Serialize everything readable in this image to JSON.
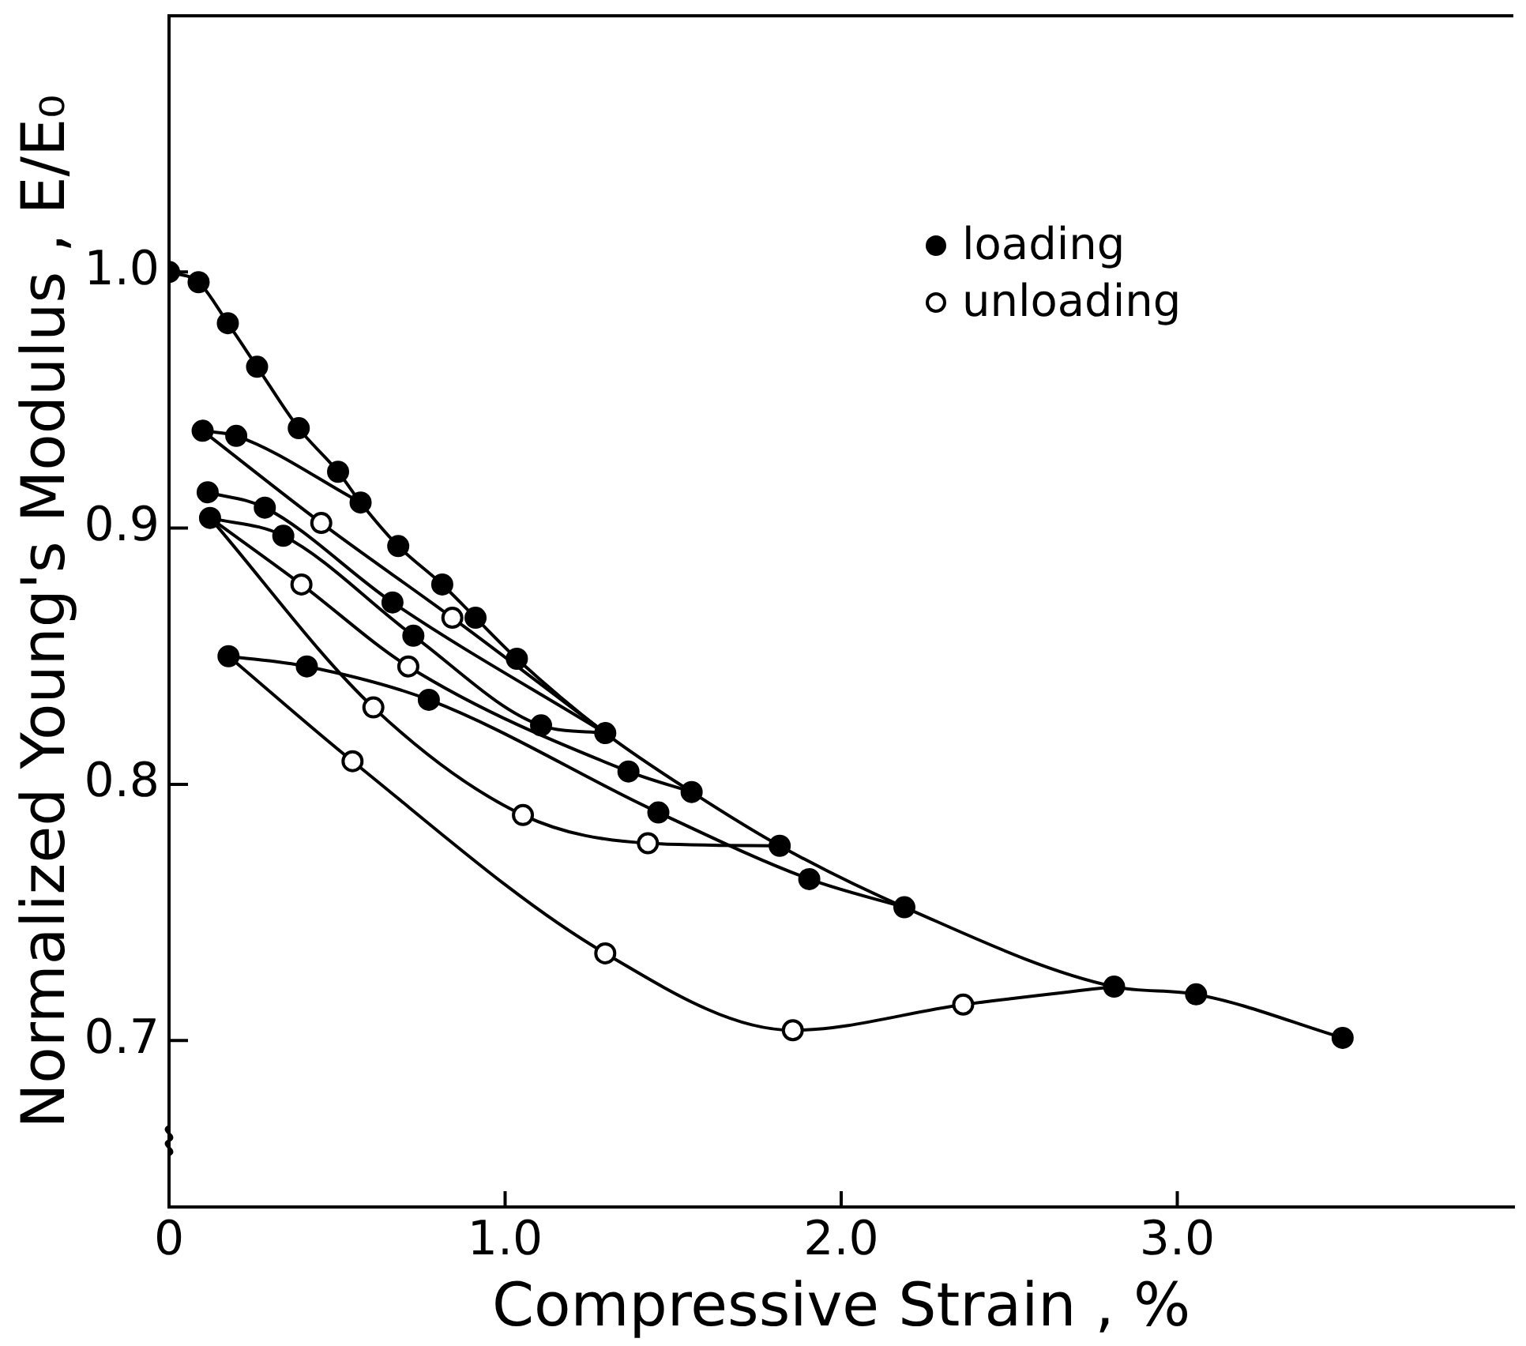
{
  "chart_data": {
    "type": "line",
    "xlabel": "Compressive Strain , %",
    "ylabel": "Normalized Young's Modulus , E/E₀",
    "xlim": [
      0,
      4.0
    ],
    "xticks": [
      0,
      {
        "value": 1,
        "label": "1.0"
      },
      {
        "value": 2,
        "label": "2.0"
      },
      {
        "value": 3,
        "label": "3.0"
      }
    ],
    "ylim": [
      0.635,
      1.1
    ],
    "yticks": [
      0.7,
      0.8,
      0.9,
      {
        "value": 1,
        "label": "1.0"
      }
    ],
    "legend": "top right",
    "series": [
      {
        "color": "#000000",
        "marker": "none",
        "x": [
          0,
          0.088,
          0.175,
          0.262,
          0.386,
          0.503,
          0.57,
          0.682,
          0.813,
          0.912,
          1.035,
          1.298,
          1.555,
          1.817,
          2.188,
          2.812,
          3.056,
          3.492
        ],
        "values": [
          1.0,
          0.996,
          0.98,
          0.963,
          0.939,
          0.922,
          0.91,
          0.893,
          0.878,
          0.865,
          0.849,
          0.82,
          0.797,
          0.776,
          0.752,
          0.721,
          0.718,
          0.701
        ]
      },
      {
        "color": "#000000",
        "marker": "none",
        "x": [
          0.1,
          0.453,
          0.843,
          1.298
        ],
        "values": [
          0.938,
          0.902,
          0.865,
          0.82
        ]
      },
      {
        "color": "#000000",
        "marker": "none",
        "x": [
          0.1,
          0.2,
          0.57
        ],
        "values": [
          0.938,
          0.936,
          0.91
        ]
      },
      {
        "color": "#000000",
        "marker": "none",
        "x": [
          0.115,
          0.285,
          0.665,
          1.298
        ],
        "values": [
          0.914,
          0.908,
          0.871,
          0.82
        ]
      },
      {
        "color": "#000000",
        "marker": "none",
        "x": [
          0.122,
          0.34,
          0.727,
          1.107,
          1.298
        ],
        "values": [
          0.904,
          0.897,
          0.858,
          0.823,
          0.82
        ]
      },
      {
        "color": "#000000",
        "marker": "none",
        "x": [
          0.122,
          0.394,
          0.712,
          1.367,
          1.555
        ],
        "values": [
          0.904,
          0.878,
          0.846,
          0.805,
          0.797
        ]
      },
      {
        "color": "#000000",
        "marker": "none",
        "x": [
          0.122,
          0.608,
          1.053,
          1.425,
          1.817
        ],
        "values": [
          0.904,
          0.83,
          0.788,
          0.777,
          0.776
        ]
      },
      {
        "color": "#000000",
        "marker": "none",
        "x": [
          0.177,
          0.546,
          1.298,
          1.856,
          2.363,
          2.812
        ],
        "values": [
          0.85,
          0.809,
          0.734,
          0.704,
          0.714,
          0.721
        ]
      },
      {
        "color": "#000000",
        "marker": "none",
        "x": [
          0.177,
          0.41,
          0.773,
          1.456,
          1.905,
          2.188
        ],
        "values": [
          0.85,
          0.846,
          0.833,
          0.789,
          0.763,
          0.752
        ]
      },
      {
        "type": "scatter",
        "name": "loading",
        "color": "#000000",
        "marker": "circle",
        "x": [
          0,
          0.088,
          0.175,
          0.262,
          0.386,
          0.503,
          0.57,
          0.682,
          0.813,
          0.912,
          1.035,
          1.298,
          1.555,
          1.817,
          2.188,
          2.812,
          3.056,
          3.492,
          0.1,
          0.2,
          0.115,
          0.285,
          0.122,
          0.34,
          0.665,
          0.727,
          0.177,
          0.41,
          0.773,
          1.107,
          1.367,
          1.456,
          1.905
        ],
        "values": [
          1.0,
          0.996,
          0.98,
          0.963,
          0.939,
          0.922,
          0.91,
          0.893,
          0.878,
          0.865,
          0.849,
          0.82,
          0.797,
          0.776,
          0.752,
          0.721,
          0.718,
          0.701,
          0.938,
          0.936,
          0.914,
          0.908,
          0.904,
          0.897,
          0.871,
          0.858,
          0.85,
          0.846,
          0.833,
          0.823,
          0.805,
          0.789,
          0.763
        ]
      },
      {
        "type": "scatter",
        "name": "unloading",
        "color": "#ffffff",
        "marker": "circle",
        "x": [
          0.453,
          0.843,
          0.394,
          0.712,
          0.608,
          0.546,
          1.053,
          1.425,
          1.298,
          1.856,
          2.363
        ],
        "values": [
          0.902,
          0.865,
          0.878,
          0.846,
          0.83,
          0.809,
          0.788,
          0.777,
          0.734,
          0.704,
          0.714
        ]
      }
    ]
  }
}
